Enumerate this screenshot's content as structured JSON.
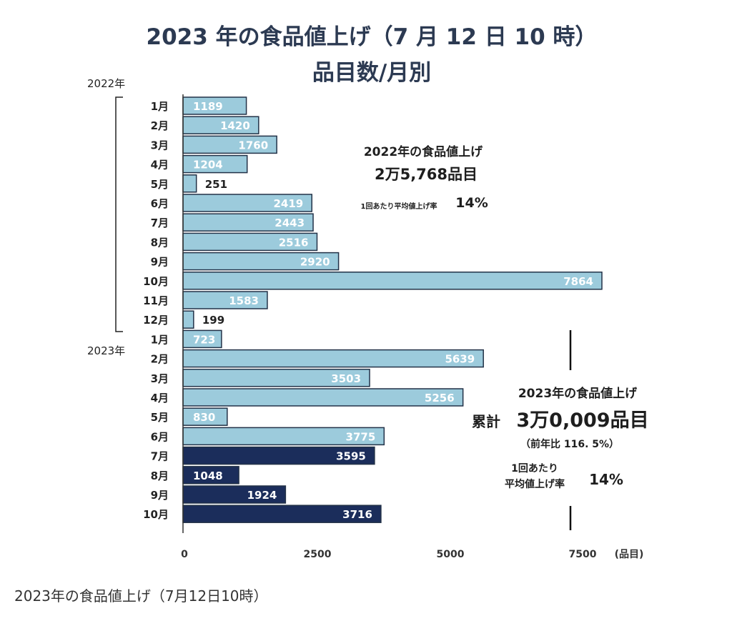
{
  "chart_data": {
    "type": "bar",
    "orientation": "horizontal",
    "title_line1": "2023 年の食品値上げ（7 月 12 日 10 時）",
    "title_line2": "品目数/月別",
    "unit_label": "(品目)",
    "xlim": [
      0,
      7864
    ],
    "xticks": [
      "0",
      "2500",
      "5000",
      "7500"
    ],
    "groups": [
      {
        "year_label": "2022年",
        "bars": [
          {
            "label": "1月",
            "value": 1189
          },
          {
            "label": "2月",
            "value": 1420
          },
          {
            "label": "3月",
            "value": 1760
          },
          {
            "label": "4月",
            "value": 1204
          },
          {
            "label": "5月",
            "value": 251
          },
          {
            "label": "6月",
            "value": 2419
          },
          {
            "label": "7月",
            "value": 2443
          },
          {
            "label": "8月",
            "value": 2516
          },
          {
            "label": "9月",
            "value": 2920
          },
          {
            "label": "10月",
            "value": 7864
          },
          {
            "label": "11月",
            "value": 1583
          },
          {
            "label": "12月",
            "value": 199
          }
        ]
      },
      {
        "year_label": "2023年",
        "bars": [
          {
            "label": "1月",
            "value": 723,
            "status": "actual"
          },
          {
            "label": "2月",
            "value": 5639,
            "status": "actual"
          },
          {
            "label": "3月",
            "value": 3503,
            "status": "actual"
          },
          {
            "label": "4月",
            "value": 5256,
            "status": "actual"
          },
          {
            "label": "5月",
            "value": 830,
            "status": "actual"
          },
          {
            "label": "6月",
            "value": 3775,
            "status": "actual"
          },
          {
            "label": "7月",
            "value": 3595,
            "status": "planned"
          },
          {
            "label": "8月",
            "value": 1048,
            "status": "planned"
          },
          {
            "label": "9月",
            "value": 1924,
            "status": "planned"
          },
          {
            "label": "10月",
            "value": 3716,
            "status": "planned"
          }
        ]
      }
    ],
    "colors": {
      "actual": "#9ccbdc",
      "planned": "#1b2d5b",
      "bar_border": "#233248"
    },
    "annotations": {
      "note_2022": {
        "title": "2022年の食品値上げ",
        "count": "2万5,768品目",
        "rate_label": "1回あたり平均値上げ率",
        "rate_value": "14%"
      },
      "note_2023": {
        "title": "2023年の食品値上げ",
        "count_prefix": "累計",
        "count": "3万0,009品目",
        "yoy": "（前年比 116. 5%）",
        "rate_label_1": "1回あたり",
        "rate_label_2": "平均値上げ率",
        "rate_value": "14%"
      }
    }
  },
  "caption": "2023年の食品値上げ（7月12日10時）"
}
